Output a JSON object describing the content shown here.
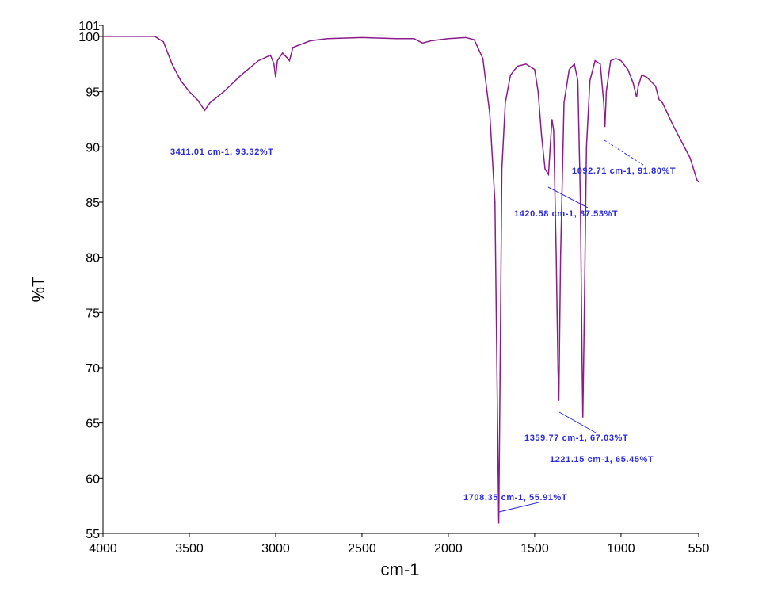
{
  "chart_data": {
    "type": "line",
    "xlabel": "cm-1",
    "ylabel": "%T",
    "color": "#8b1a8b",
    "xlim": [
      4000,
      550
    ],
    "ylim": [
      55,
      101
    ],
    "xticks": [
      4000,
      3500,
      3000,
      2500,
      2000,
      1500,
      1000,
      550
    ],
    "yticks": [
      55,
      60,
      65,
      70,
      75,
      80,
      85,
      90,
      95,
      100,
      101
    ],
    "x": [
      4000,
      3700,
      3650,
      3600,
      3550,
      3500,
      3450,
      3411,
      3380,
      3300,
      3200,
      3100,
      3030,
      3010,
      3000,
      2990,
      2960,
      2930,
      2920,
      2900,
      2850,
      2800,
      2700,
      2500,
      2300,
      2200,
      2150,
      2100,
      2000,
      1900,
      1850,
      1800,
      1760,
      1730,
      1715,
      1708,
      1700,
      1690,
      1670,
      1640,
      1600,
      1550,
      1500,
      1480,
      1460,
      1440,
      1420,
      1410,
      1400,
      1390,
      1375,
      1365,
      1360,
      1350,
      1330,
      1300,
      1270,
      1250,
      1235,
      1225,
      1221,
      1215,
      1200,
      1180,
      1150,
      1120,
      1100,
      1093,
      1085,
      1060,
      1030,
      1000,
      960,
      930,
      910,
      900,
      880,
      850,
      800,
      780,
      760,
      730,
      700,
      650,
      600,
      560,
      550
    ],
    "values": [
      100,
      100,
      99.5,
      97.5,
      96,
      95,
      94.2,
      93.3,
      94,
      95,
      96.5,
      97.8,
      98.3,
      97.5,
      96.3,
      97.8,
      98.5,
      98,
      97.8,
      99,
      99.3,
      99.6,
      99.8,
      99.9,
      99.8,
      99.8,
      99.4,
      99.6,
      99.8,
      99.9,
      99.7,
      98,
      93,
      85,
      65,
      55.9,
      70,
      88,
      94,
      96.5,
      97.3,
      97.5,
      97,
      95,
      91,
      88,
      87.5,
      90,
      92.5,
      91.5,
      80,
      70,
      67,
      80,
      94,
      97,
      97.5,
      96,
      85,
      70,
      65.5,
      72,
      90,
      96,
      97.8,
      97.5,
      94,
      91.8,
      95,
      97.8,
      98,
      97.8,
      97,
      95.8,
      94.5,
      95.5,
      96.5,
      96.3,
      95.5,
      94.3,
      94,
      93,
      92,
      90.5,
      89,
      87,
      86.8
    ],
    "annotations": [
      {
        "text": "3411.01 cm-1, 93.32%T",
        "x": 3411.01,
        "y": 93.32
      },
      {
        "text": "1092.71 cm-1, 91.80%T",
        "x": 1092.71,
        "y": 91.8
      },
      {
        "text": "1420.58 cm-1, 87.53%T",
        "x": 1420.58,
        "y": 87.53
      },
      {
        "text": "1359.77 cm-1, 67.03%T",
        "x": 1359.77,
        "y": 67.03
      },
      {
        "text": "1221.15 cm-1, 65.45%T",
        "x": 1221.15,
        "y": 65.45
      },
      {
        "text": "1708.35 cm-1, 55.91%T",
        "x": 1708.35,
        "y": 55.91
      }
    ]
  }
}
